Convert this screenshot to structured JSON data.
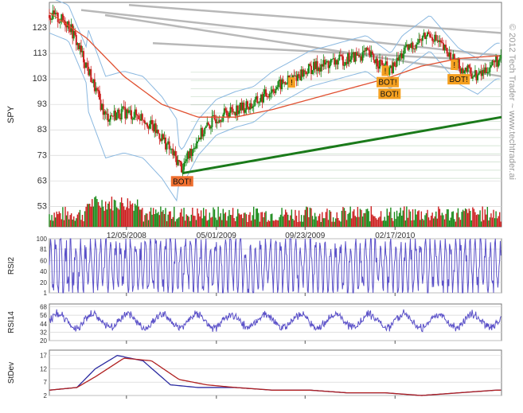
{
  "watermark": "© 2012 Tech Trader ~ www.techtrader.ai",
  "colors": {
    "up": "#1a8a1a",
    "down": "#cc2020",
    "sma_red": "#e05030",
    "band_blue": "#8ab8e0",
    "trend_green": "#1a7a1a",
    "resistance_gray": "#b8b8b8",
    "rsi": "#5a50c8",
    "stdev_blue": "#2a2aa0",
    "stdev_red": "#b02020",
    "bot_label": "#f5a020",
    "grid": "#c8dcc8"
  },
  "chart_data": [
    {
      "type": "line",
      "panel": "price",
      "ylabel": "SPY",
      "ylim": [
        45,
        133
      ],
      "y_ticks": [
        53,
        63,
        73,
        83,
        93,
        103,
        113,
        123
      ],
      "x_tick_labels": [
        "12/05/2008",
        "05/01/2009",
        "09/23/2009",
        "02/17/2010"
      ],
      "close_series": {
        "x": [
          "2008-08-01",
          "2008-09-01",
          "2008-10-01",
          "2008-11-01",
          "2008-12-01",
          "2009-01-01",
          "2009-02-01",
          "2009-03-06",
          "2009-04-01",
          "2009-05-01",
          "2009-06-01",
          "2009-07-01",
          "2009-08-01",
          "2009-09-01",
          "2009-10-01",
          "2009-11-01",
          "2009-12-01",
          "2010-01-01",
          "2010-02-10",
          "2010-03-01",
          "2010-04-15",
          "2010-05-10",
          "2010-06-01",
          "2010-07-02",
          "2010-08-01"
        ],
        "values": [
          128,
          125,
          108,
          88,
          90,
          88,
          80,
          68,
          80,
          88,
          91,
          93,
          99,
          103,
          107,
          109,
          111,
          113,
          106,
          113,
          121,
          114,
          108,
          104,
          110
        ]
      },
      "sma_series": {
        "x": [
          "2008-08-01",
          "2008-10-01",
          "2008-12-01",
          "2009-02-01",
          "2009-04-01",
          "2009-06-01",
          "2009-08-01",
          "2009-10-01",
          "2009-12-01",
          "2010-02-01",
          "2010-04-01",
          "2010-06-01",
          "2010-08-01"
        ],
        "values": [
          129,
          119,
          104,
          93,
          88,
          88,
          91,
          95,
          99,
          103,
          108,
          111,
          112
        ]
      },
      "annotations": [
        {
          "label": "BOT!",
          "date": "2009-03-06"
        },
        {
          "label": "!",
          "date": "2009-09-01"
        },
        {
          "label": "BOT!",
          "date": "2010-02-05"
        },
        {
          "label": "BOT!",
          "date": "2010-02-08"
        },
        {
          "label": "!",
          "date": "2010-02-01"
        },
        {
          "label": "BOT!",
          "date": "2010-06-01"
        },
        {
          "label": "!",
          "date": "2010-05-25"
        }
      ]
    },
    {
      "type": "line",
      "panel": "rsi2",
      "ylabel": "RSI2",
      "ylim": [
        1,
        100
      ],
      "y_ticks": [
        1,
        20,
        40,
        60,
        81,
        100
      ]
    },
    {
      "type": "line",
      "panel": "rsi14",
      "ylabel": "RSI14",
      "ylim": [
        20,
        72
      ],
      "y_ticks": [
        20,
        32,
        44,
        56,
        68
      ]
    },
    {
      "type": "line",
      "panel": "stdev",
      "ylabel": "StDev",
      "ylim": [
        2,
        19
      ],
      "y_ticks": [
        2,
        7,
        12,
        17
      ],
      "series": [
        {
          "x": [
            "2008-08-01",
            "2008-09-15",
            "2008-10-15",
            "2008-11-20",
            "2009-01-01",
            "2009-02-15",
            "2009-04-01",
            "2009-06-01",
            "2009-08-01",
            "2009-10-01",
            "2009-12-01",
            "2010-02-01",
            "2010-04-01",
            "2010-06-01",
            "2010-08-01"
          ],
          "values": [
            4,
            5,
            12,
            17,
            15,
            6,
            5,
            5,
            4,
            4,
            3,
            3,
            2,
            3,
            4
          ]
        },
        {
          "x": [
            "2008-08-01",
            "2008-09-15",
            "2008-10-15",
            "2008-12-01",
            "2009-01-15",
            "2009-03-01",
            "2009-04-15",
            "2009-06-01",
            "2009-08-01",
            "2009-10-01",
            "2009-12-01",
            "2010-02-01",
            "2010-04-01",
            "2010-06-01",
            "2010-08-01"
          ],
          "values": [
            4,
            5,
            9,
            16,
            15,
            8,
            6,
            5,
            4,
            4,
            3,
            3,
            2,
            3,
            4
          ]
        }
      ]
    }
  ]
}
